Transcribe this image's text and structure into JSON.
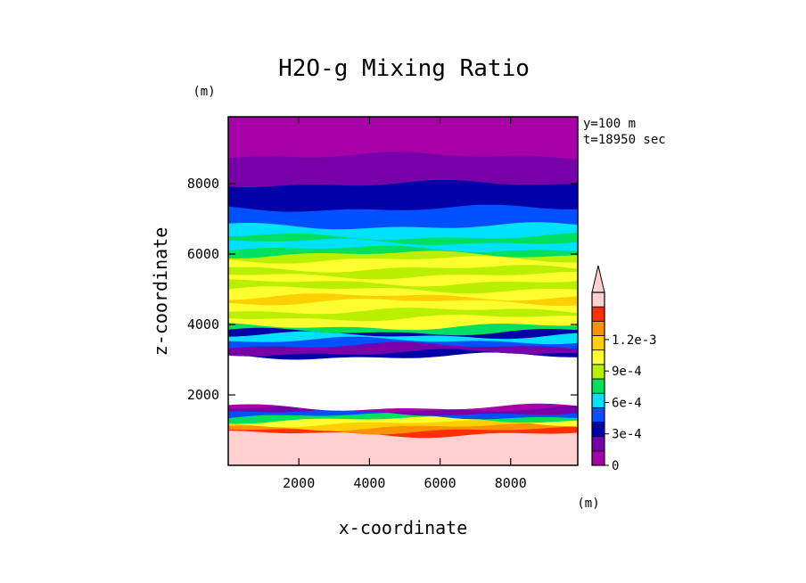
{
  "chart_data": {
    "type": "heatmap",
    "title": "H2O-g Mixing Ratio",
    "xlabel": "x-coordinate",
    "ylabel": "z-coordinate",
    "x_unit": "(m)",
    "y_unit": "(m)",
    "xlim": [
      0,
      9900
    ],
    "ylim": [
      0,
      9900
    ],
    "x_ticks": [
      2000,
      4000,
      6000,
      8000
    ],
    "y_ticks": [
      2000,
      4000,
      6000,
      8000
    ],
    "annotations": [
      "y=100 m",
      "t=18950 sec"
    ],
    "colorbar": {
      "levels": [
        0,
        0.00015,
        0.0003,
        0.00045,
        0.0006,
        0.00075,
        0.0009,
        0.00105,
        0.0012
      ],
      "colors": [
        "#a800a8",
        "#7800a8",
        "#0000a8",
        "#0050ff",
        "#00e0ff",
        "#00e060",
        "#b8f000",
        "#ffff30",
        "#ffd000",
        "#ff9000",
        "#ff3000",
        "#ffd0d0"
      ],
      "labels": [
        {
          "value": 0,
          "text": "0"
        },
        {
          "value": 0.0003,
          "text": "3e-4"
        },
        {
          "value": 0.0006,
          "text": "6e-4"
        },
        {
          "value": 0.0009,
          "text": "9e-4"
        },
        {
          "value": 0.0012,
          "text": "1.2e-3"
        }
      ],
      "extend": "max"
    },
    "bands": [
      {
        "z_bottom": 0,
        "z_top": 900,
        "level_index": 11
      },
      {
        "z_bottom": 900,
        "z_top": 1000,
        "level_index": 10
      },
      {
        "z_bottom": 1000,
        "z_top": 1100,
        "level_index": 9
      },
      {
        "z_bottom": 1100,
        "z_top": 1200,
        "level_index": 8
      },
      {
        "z_bottom": 1200,
        "z_top": 1300,
        "level_index": 7
      },
      {
        "z_bottom": 1300,
        "z_top": 1400,
        "level_index": 5
      },
      {
        "z_bottom": 1400,
        "z_top": 1500,
        "level_index": 3
      },
      {
        "z_bottom": 1500,
        "z_top": 1600,
        "level_index": 1
      },
      {
        "z_bottom": 1600,
        "z_top": 1650,
        "level_index": 0
      },
      {
        "z_bottom": 1650,
        "z_top": 3100,
        "level_index": -1
      },
      {
        "z_bottom": 3100,
        "z_top": 3200,
        "level_index": 2
      },
      {
        "z_bottom": 3200,
        "z_top": 3400,
        "level_index": 1
      },
      {
        "z_bottom": 3400,
        "z_top": 3550,
        "level_index": 3
      },
      {
        "z_bottom": 3550,
        "z_top": 3700,
        "level_index": 4
      },
      {
        "z_bottom": 3700,
        "z_top": 3800,
        "level_index": 2
      },
      {
        "z_bottom": 3800,
        "z_top": 3950,
        "level_index": 5
      },
      {
        "z_bottom": 3950,
        "z_top": 4200,
        "level_index": 7
      },
      {
        "z_bottom": 4200,
        "z_top": 4400,
        "level_index": 6
      },
      {
        "z_bottom": 4400,
        "z_top": 4650,
        "level_index": 7
      },
      {
        "z_bottom": 4650,
        "z_top": 4800,
        "level_index": 8
      },
      {
        "z_bottom": 4800,
        "z_top": 5000,
        "level_index": 7
      },
      {
        "z_bottom": 5000,
        "z_top": 5200,
        "level_index": 6
      },
      {
        "z_bottom": 5200,
        "z_top": 5400,
        "level_index": 7
      },
      {
        "z_bottom": 5400,
        "z_top": 5600,
        "level_index": 6
      },
      {
        "z_bottom": 5600,
        "z_top": 5850,
        "level_index": 7
      },
      {
        "z_bottom": 5850,
        "z_top": 6000,
        "level_index": 6
      },
      {
        "z_bottom": 6000,
        "z_top": 6150,
        "level_index": 5
      },
      {
        "z_bottom": 6150,
        "z_top": 6350,
        "level_index": 4
      },
      {
        "z_bottom": 6350,
        "z_top": 6500,
        "level_index": 5
      },
      {
        "z_bottom": 6500,
        "z_top": 6800,
        "level_index": 4
      },
      {
        "z_bottom": 6800,
        "z_top": 7300,
        "level_index": 3
      },
      {
        "z_bottom": 7300,
        "z_top": 8000,
        "level_index": 2
      },
      {
        "z_bottom": 8000,
        "z_top": 8800,
        "level_index": 1
      },
      {
        "z_bottom": 8800,
        "z_top": 9900,
        "level_index": 0
      }
    ]
  }
}
